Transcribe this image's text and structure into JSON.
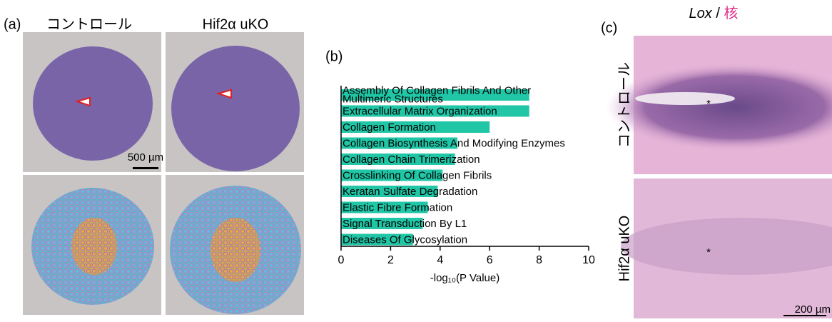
{
  "panel_a": {
    "label": "(a)",
    "columns": [
      "コントロール",
      "Hif2α uKO"
    ],
    "scale_bar": "500 µm"
  },
  "panel_b": {
    "label": "(b)"
  },
  "chart_data": {
    "type": "bar",
    "orientation": "horizontal",
    "categories": [
      "Assembly Of Collagen Fibrils And Other\nMultimeric Structures",
      "Extracellular Matrix Organization",
      "Collagen Formation",
      "Collagen Biosynthesis And Modifying Enzymes",
      "Collagen Chain Trimerization",
      "Crosslinking Of Collagen Fibrils",
      "Keratan Sulfate Degradation",
      "Elastic Fibre Formation",
      "Signal Transduction By L1",
      "Diseases Of Glycosylation"
    ],
    "values": [
      7.6,
      7.6,
      6.0,
      4.7,
      4.6,
      4.1,
      3.9,
      3.5,
      3.3,
      2.9
    ],
    "color": "#20c6a6",
    "xlabel": "-log₁₀(P Value)",
    "xlim": [
      0,
      10
    ],
    "xticks": [
      0,
      2,
      4,
      6,
      8,
      10
    ]
  },
  "panel_c": {
    "label": "(c)",
    "title_gene": "Lox",
    "title_separator": " / ",
    "title_stain": "核",
    "rows": [
      "コントロール",
      "Hif2α uKO"
    ],
    "asterisks": [
      "*",
      "*"
    ],
    "scale_bar": "200 µm"
  }
}
